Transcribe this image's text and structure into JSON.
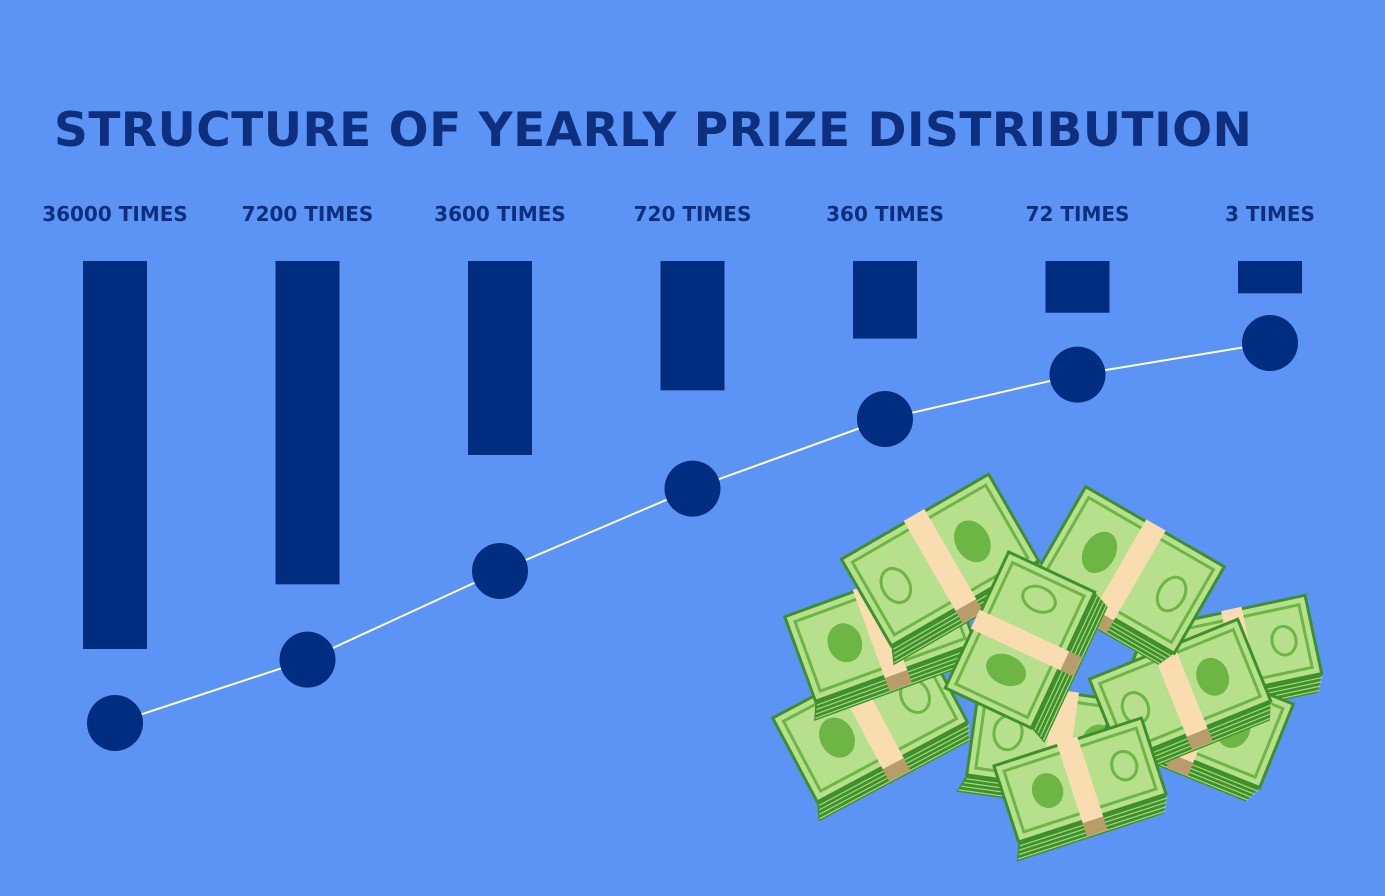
{
  "chart_data": {
    "type": "bar",
    "title": "STRUCTURE OF YEARLY PRIZE DISTRIBUTION",
    "categories": [
      "36000 TIMES",
      "7200 TIMES",
      "3600 TIMES",
      "720 TIMES",
      "360 TIMES",
      "72 TIMES",
      "3 TIMES"
    ],
    "series": [
      {
        "values": [
          6,
          5,
          3,
          2,
          1.2,
          0.8,
          0.5
        ]
      }
    ],
    "line_series": [
      {
        "values": [
          0,
          1,
          2.4,
          3.7,
          4.8,
          5.5,
          6
        ]
      }
    ],
    "bar_orientation": "hanging from top",
    "grid": false,
    "legend": "none",
    "colors": {
      "background": "#5b94f5",
      "bar": "#002d80",
      "marker": "#002d80",
      "line": "#ffffff",
      "text": "#0d2f7d"
    }
  },
  "decoration": {
    "illustration": "money-pile-icon"
  }
}
